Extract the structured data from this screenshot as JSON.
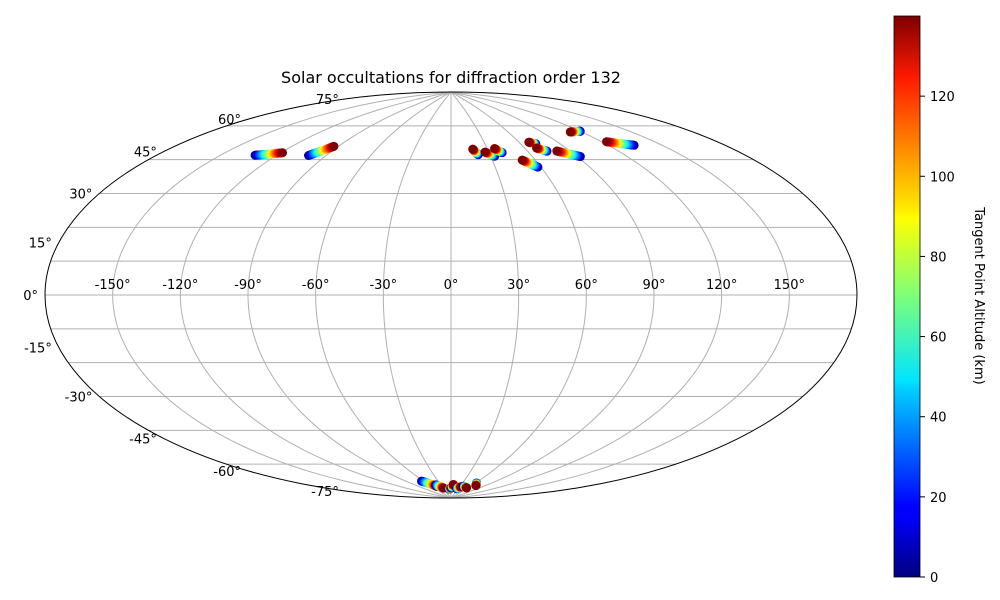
{
  "chart_data": {
    "type": "scatter",
    "title": "Solar occultations for diffraction order 132",
    "projection": "aitoff",
    "grid": true,
    "longitude_ticks": [
      "-150°",
      "-120°",
      "-90°",
      "-60°",
      "-30°",
      "0°",
      "30°",
      "60°",
      "90°",
      "120°",
      "150°"
    ],
    "latitude_ticks": [
      "75°",
      "60°",
      "45°",
      "30°",
      "15°",
      "0°",
      "-15°",
      "-30°",
      "-45°",
      "-60°",
      "-75°"
    ],
    "colorbar": {
      "label": "Tangent Point Altitude (km)",
      "colormap": "jet",
      "range": [
        0,
        140
      ],
      "ticks": [
        "0",
        "20",
        "40",
        "60",
        "80",
        "100",
        "120"
      ]
    },
    "x_unit": "longitude (deg)",
    "y_unit": "latitude (deg)",
    "occultations": [
      {
        "lon_start": -132,
        "lat_start": 52.5,
        "alt_start": 0,
        "lon_end": -119,
        "lat_end": 55.5,
        "alt_end": 140
      },
      {
        "lon_start": -101,
        "lat_start": 56.5,
        "alt_start": 0,
        "lon_end": -93,
        "lat_end": 61.5,
        "alt_end": 140
      },
      {
        "lon_start": 21,
        "lat_start": 62,
        "alt_start": 0,
        "lon_end": 18,
        "lat_end": 64.5,
        "alt_end": 140
      },
      {
        "lon_start": 33,
        "lat_start": 61,
        "alt_start": 0,
        "lon_end": 27,
        "lat_end": 63,
        "alt_end": 140
      },
      {
        "lon_start": 40,
        "lat_start": 62.3,
        "alt_start": 0,
        "lon_end": 36,
        "lat_end": 64.3,
        "alt_end": 140
      },
      {
        "lon_start": 58,
        "lat_start": 55,
        "alt_start": 0,
        "lon_end": 51,
        "lat_end": 58.5,
        "alt_end": 140
      },
      {
        "lon_start": 72,
        "lat_start": 64.5,
        "alt_start": 0,
        "lon_end": 68,
        "lat_end": 65.5,
        "alt_end": 140
      },
      {
        "lon_start": 74,
        "lat_start": 61,
        "alt_start": 0,
        "lon_end": 69,
        "lat_end": 62.8,
        "alt_end": 140
      },
      {
        "lon_start": 92,
        "lat_start": 57,
        "alt_start": 0,
        "lon_end": 81,
        "lat_end": 60.5,
        "alt_end": 140
      },
      {
        "lon_start": 120,
        "lat_start": 65.5,
        "alt_start": 0,
        "lon_end": 112,
        "lat_end": 66.2,
        "alt_end": 140
      },
      {
        "lon_start": 135,
        "lat_start": 56.5,
        "alt_start": 0,
        "lon_end": 123,
        "lat_end": 60,
        "alt_end": 140
      },
      {
        "lon_start": -64,
        "lat_start": -81.5,
        "alt_start": 0,
        "lon_end": -45,
        "lat_end": -84.5,
        "alt_end": 140
      },
      {
        "lon_start": -44,
        "lat_start": -83.8,
        "alt_start": 0,
        "lon_end": -28,
        "lat_end": -85.5,
        "alt_end": 140
      },
      {
        "lon_start": -7,
        "lat_start": -86,
        "alt_start": 0,
        "lon_end": 0,
        "lat_end": -85.5,
        "alt_end": 140
      },
      {
        "lon_start": 3,
        "lat_start": -85.5,
        "alt_start": 0,
        "lon_end": 7,
        "lat_end": -84,
        "alt_end": 140
      },
      {
        "lon_start": 23,
        "lat_start": -85.8,
        "alt_start": 0,
        "lon_end": 34,
        "lat_end": -84.8,
        "alt_end": 140
      },
      {
        "lon_start": 40,
        "lat_start": -84.5,
        "alt_start": 0,
        "lon_end": 55,
        "lat_end": -85,
        "alt_end": 140
      },
      {
        "lon_start": 62,
        "lat_start": -82.5,
        "alt_start": 0,
        "lon_end": 70,
        "lat_end": -83.5,
        "alt_end": 140
      }
    ]
  }
}
